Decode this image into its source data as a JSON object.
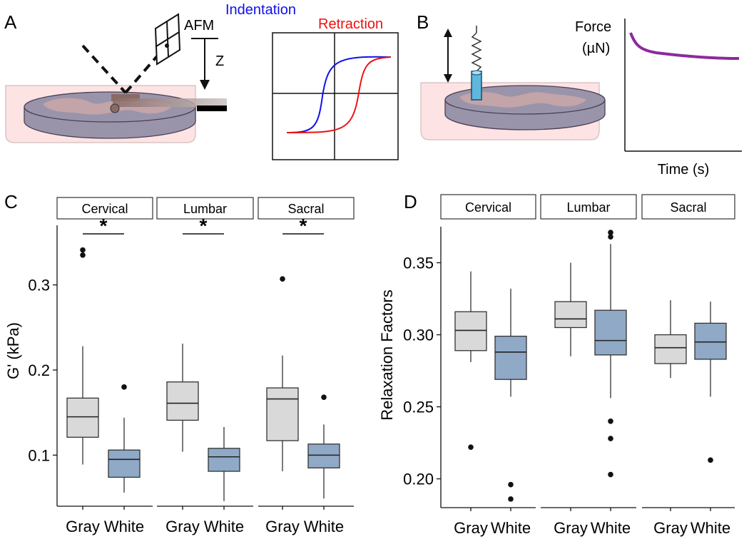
{
  "panels": {
    "a": "A",
    "b": "B",
    "c": "C",
    "d": "D"
  },
  "schematic_a": {
    "afm_label": "AFM",
    "z_label": "Z",
    "indentation_label": "Indentation",
    "retraction_label": "Retraction",
    "indentation_color": "#1010ee",
    "retraction_color": "#ee1111"
  },
  "schematic_b": {
    "y_title_line1": "Force",
    "y_title_line2": "(µN)",
    "x_title": "Time (s)",
    "curve_color": "#8b2b9c"
  },
  "colors": {
    "gray_box": "#d9d9d9",
    "white_box": "#8fa9c7"
  },
  "chart_data": [
    {
      "type": "box",
      "panel": "C",
      "ylabel": "G' (kPa)",
      "ylim": [
        0.04,
        0.37
      ],
      "yticks": [
        0.1,
        0.2,
        0.3
      ],
      "facets": [
        {
          "label": "Cervical",
          "significance": "*",
          "groups": [
            {
              "name": "Gray",
              "whisker_low": 0.089,
              "q1": 0.121,
              "median": 0.145,
              "q3": 0.167,
              "whisker_high": 0.228,
              "outliers": [
                0.335,
                0.341
              ]
            },
            {
              "name": "White",
              "whisker_low": 0.056,
              "q1": 0.074,
              "median": 0.095,
              "q3": 0.106,
              "whisker_high": 0.144,
              "outliers": [
                0.18
              ]
            }
          ]
        },
        {
          "label": "Lumbar",
          "significance": "*",
          "groups": [
            {
              "name": "Gray",
              "whisker_low": 0.104,
              "q1": 0.141,
              "median": 0.161,
              "q3": 0.186,
              "whisker_high": 0.231,
              "outliers": []
            },
            {
              "name": "White",
              "whisker_low": 0.046,
              "q1": 0.081,
              "median": 0.098,
              "q3": 0.108,
              "whisker_high": 0.133,
              "outliers": []
            }
          ]
        },
        {
          "label": "Sacral",
          "significance": "*",
          "groups": [
            {
              "name": "Gray",
              "whisker_low": 0.081,
              "q1": 0.117,
              "median": 0.166,
              "q3": 0.179,
              "whisker_high": 0.217,
              "outliers": [
                0.307
              ]
            },
            {
              "name": "White",
              "whisker_low": 0.049,
              "q1": 0.085,
              "median": 0.1,
              "q3": 0.113,
              "whisker_high": 0.136,
              "outliers": [
                0.168
              ]
            }
          ]
        }
      ]
    },
    {
      "type": "box",
      "panel": "D",
      "ylabel": "Relaxation Factors",
      "ylim": [
        0.18,
        0.375
      ],
      "yticks": [
        0.2,
        0.25,
        0.3,
        0.35
      ],
      "facets": [
        {
          "label": "Cervical",
          "significance": "",
          "groups": [
            {
              "name": "Gray",
              "whisker_low": 0.281,
              "q1": 0.289,
              "median": 0.303,
              "q3": 0.316,
              "whisker_high": 0.344,
              "outliers": [
                0.222
              ]
            },
            {
              "name": "White",
              "whisker_low": 0.257,
              "q1": 0.269,
              "median": 0.288,
              "q3": 0.299,
              "whisker_high": 0.332,
              "outliers": [
                0.196,
                0.186
              ]
            }
          ]
        },
        {
          "label": "Lumbar",
          "significance": "",
          "groups": [
            {
              "name": "Gray",
              "whisker_low": 0.285,
              "q1": 0.305,
              "median": 0.311,
              "q3": 0.323,
              "whisker_high": 0.35,
              "outliers": []
            },
            {
              "name": "White",
              "whisker_low": 0.256,
              "q1": 0.286,
              "median": 0.296,
              "q3": 0.317,
              "whisker_high": 0.363,
              "outliers": [
                0.368,
                0.371,
                0.24,
                0.228,
                0.203
              ]
            }
          ]
        },
        {
          "label": "Sacral",
          "significance": "",
          "groups": [
            {
              "name": "Gray",
              "whisker_low": 0.27,
              "q1": 0.28,
              "median": 0.291,
              "q3": 0.3,
              "whisker_high": 0.324,
              "outliers": []
            },
            {
              "name": "White",
              "whisker_low": 0.257,
              "q1": 0.283,
              "median": 0.295,
              "q3": 0.308,
              "whisker_high": 0.323,
              "outliers": [
                0.213
              ]
            }
          ]
        }
      ]
    }
  ]
}
